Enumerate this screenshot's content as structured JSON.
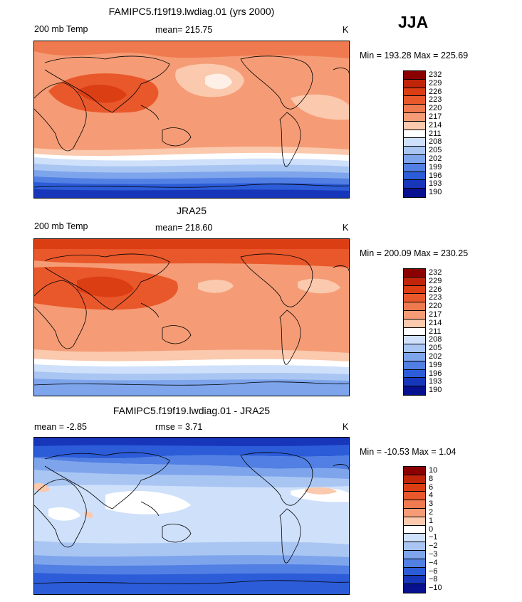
{
  "season": "JJA",
  "panels": [
    {
      "title": "FAMIPC5.f19f19.lwdiag.01 (yrs 2000)",
      "left": "200 mb Temp",
      "center": "mean= 215.75",
      "units": "K",
      "minmax": "Min = 193.28 Max = 225.69",
      "levels": [
        "232",
        "229",
        "226",
        "223",
        "220",
        "217",
        "214",
        "211",
        "208",
        "205",
        "202",
        "199",
        "196",
        "193",
        "190"
      ],
      "colors": [
        "#8b0000",
        "#c0250a",
        "#dc3e14",
        "#e9582b",
        "#f07a4f",
        "#f59c76",
        "#fbc9ad",
        "#ffffff",
        "#cfe0fa",
        "#a9c6f3",
        "#7ea5ec",
        "#517fe3",
        "#2c5cd8",
        "#1736b9",
        "#07108e"
      ]
    },
    {
      "title": "JRA25",
      "left": "200 mb Temp",
      "center": "mean= 218.60",
      "units": "K",
      "minmax": "Min = 200.09 Max = 230.25",
      "levels": [
        "232",
        "229",
        "226",
        "223",
        "220",
        "217",
        "214",
        "211",
        "208",
        "205",
        "202",
        "199",
        "196",
        "193",
        "190"
      ],
      "colors": [
        "#8b0000",
        "#c0250a",
        "#dc3e14",
        "#e9582b",
        "#f07a4f",
        "#f59c76",
        "#fbc9ad",
        "#ffffff",
        "#cfe0fa",
        "#a9c6f3",
        "#7ea5ec",
        "#517fe3",
        "#2c5cd8",
        "#1736b9",
        "#07108e"
      ]
    },
    {
      "title": "FAMIPC5.f19f19.lwdiag.01 - JRA25",
      "left": "mean =   -2.85",
      "center": "rmse =    3.71",
      "units": "K",
      "minmax": "Min = -10.53 Max =   1.04",
      "levels": [
        "10",
        "8",
        "6",
        "4",
        "3",
        "2",
        "1",
        "0",
        "−1",
        "−2",
        "−3",
        "−4",
        "−6",
        "−8",
        "−10"
      ],
      "colors": [
        "#8b0000",
        "#c0250a",
        "#dc3e14",
        "#e9582b",
        "#f07a4f",
        "#f59c76",
        "#fbc9ad",
        "#ffffff",
        "#cfe0fa",
        "#a9c6f3",
        "#7ea5ec",
        "#517fe3",
        "#2c5cd8",
        "#1736b9",
        "#07108e"
      ]
    }
  ]
}
